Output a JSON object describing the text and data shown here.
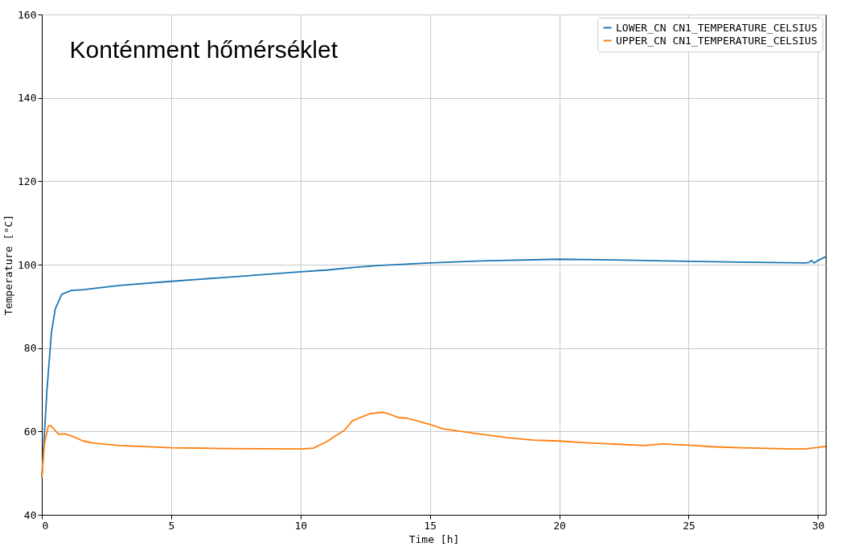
{
  "chart_data": {
    "type": "line",
    "title": "Konténment hőmérséklet",
    "xlabel": "Time [h]",
    "ylabel": "Temperature [°C]",
    "xlim": [
      0,
      30.3
    ],
    "xticks": [
      0,
      5,
      10,
      15,
      20,
      25,
      30
    ],
    "ylim": [
      40,
      160
    ],
    "yticks": [
      40,
      60,
      80,
      100,
      120,
      140,
      160
    ],
    "grid": true,
    "legend": "top right",
    "series": [
      {
        "name": "LOWER_CN CN1_TEMPERATURE_CELSIUS",
        "color": "#1f77b4",
        "x": [
          0,
          0.2,
          0.37,
          0.52,
          0.77,
          1.14,
          1.6,
          3,
          5,
          7,
          10,
          11,
          12,
          13,
          15,
          17,
          20,
          22.5,
          25,
          27,
          29.5,
          29.65,
          29.75,
          29.85,
          30.0,
          30.3
        ],
        "values": [
          48.8,
          70,
          83.6,
          89.4,
          92.9,
          93.8,
          94.0,
          95.0,
          96.0,
          96.9,
          98.3,
          98.7,
          99.3,
          99.8,
          100.4,
          100.9,
          101.3,
          101.1,
          100.8,
          100.6,
          100.4,
          100.5,
          101.0,
          100.4,
          101.0,
          101.9
        ]
      },
      {
        "name": "UPPER_CN CN1_TEMPERATURE_CELSIUS",
        "color": "#ff7f0e",
        "x": [
          0,
          0.1,
          0.25,
          0.35,
          0.5,
          0.65,
          0.9,
          1.2,
          1.6,
          2,
          3,
          5,
          7,
          10,
          10.5,
          11,
          11.7,
          12,
          12.3,
          12.7,
          13.2,
          13.5,
          13.8,
          14.1,
          15,
          15.5,
          16,
          17,
          18,
          19,
          20,
          21,
          22,
          23.3,
          24,
          25,
          26,
          27,
          29,
          29.5,
          30.3
        ],
        "values": [
          49.0,
          57,
          61.3,
          61.4,
          60.3,
          59.3,
          59.4,
          58.8,
          57.7,
          57.2,
          56.6,
          56.1,
          55.9,
          55.8,
          56.0,
          57.5,
          60.3,
          62.5,
          63.3,
          64.3,
          64.6,
          64.0,
          63.3,
          63.2,
          61.7,
          60.6,
          60.2,
          59.3,
          58.5,
          57.9,
          57.7,
          57.3,
          57.0,
          56.6,
          57.0,
          56.7,
          56.3,
          56.1,
          55.8,
          55.8,
          56.4
        ]
      }
    ]
  }
}
